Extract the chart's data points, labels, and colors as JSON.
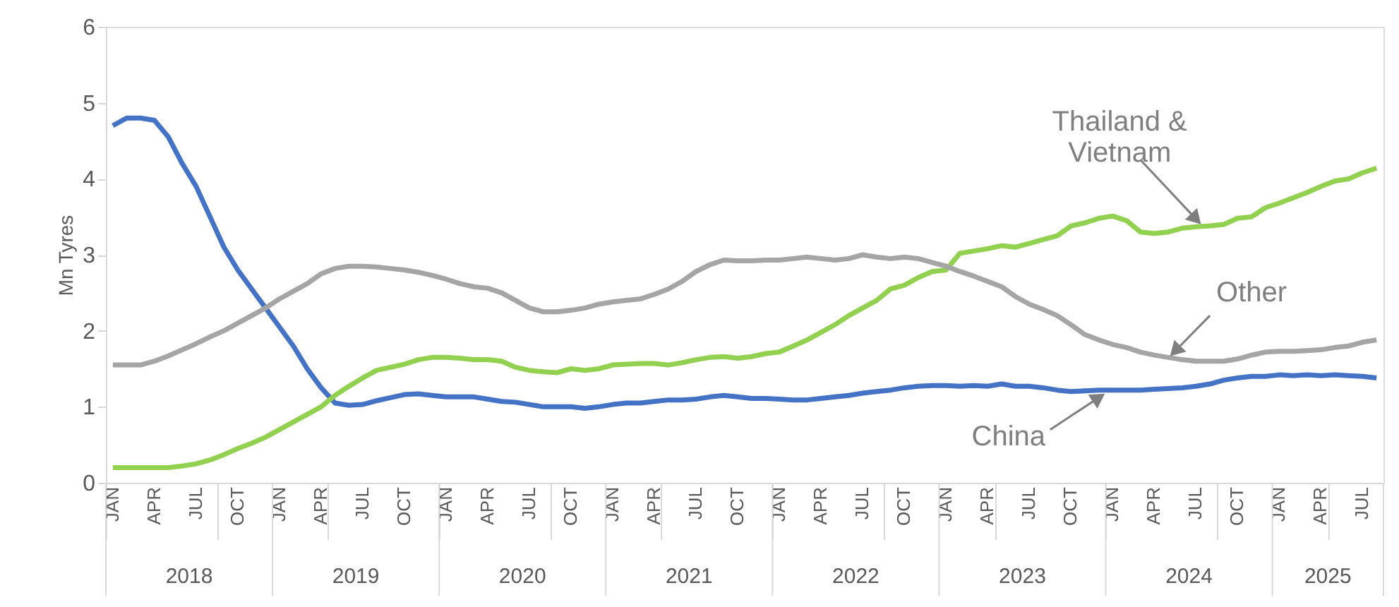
{
  "chart_data": {
    "type": "line",
    "ylabel": "Mn Tyres",
    "categories": [
      "JAN",
      null,
      null,
      "APR",
      null,
      null,
      "JUL",
      null,
      null,
      "OCT",
      null,
      null,
      "JAN",
      null,
      null,
      "APR",
      null,
      null,
      "JUL",
      null,
      null,
      "OCT",
      null,
      null,
      "JAN",
      null,
      null,
      "APR",
      null,
      null,
      "JUL",
      null,
      null,
      "OCT",
      null,
      null,
      "JAN",
      null,
      null,
      "APR",
      null,
      null,
      "JUL",
      null,
      null,
      "OCT",
      null,
      null,
      "JAN",
      null,
      null,
      "APR",
      null,
      null,
      "JUL",
      null,
      null,
      "OCT",
      null,
      null,
      "JAN",
      null,
      null,
      "APR",
      null,
      null,
      "JUL",
      null,
      null,
      "OCT",
      null,
      null,
      "JAN",
      null,
      null,
      "APR",
      null,
      null,
      "JUL",
      null,
      null,
      "OCT",
      null,
      null,
      "JAN",
      null,
      null,
      "APR",
      null,
      null,
      "JUL",
      null
    ],
    "annotations": [
      "2018",
      "2019",
      "2020",
      "2021",
      "2022",
      "2023",
      "2024",
      "2025"
    ],
    "series": [
      {
        "name": "China",
        "color": "#4472c4",
        "values": [
          4.7,
          4.8,
          4.8,
          4.77,
          4.55,
          4.2,
          3.9,
          3.5,
          3.1,
          2.8,
          2.55,
          2.3,
          2.05,
          1.8,
          1.5,
          1.25,
          1.05,
          1.02,
          1.03,
          1.08,
          1.12,
          1.16,
          1.17,
          1.15,
          1.13,
          1.13,
          1.13,
          1.1,
          1.07,
          1.06,
          1.03,
          1.0,
          1.0,
          1.0,
          0.98,
          1.0,
          1.03,
          1.05,
          1.05,
          1.07,
          1.09,
          1.09,
          1.1,
          1.13,
          1.15,
          1.13,
          1.11,
          1.11,
          1.1,
          1.09,
          1.09,
          1.11,
          1.13,
          1.15,
          1.18,
          1.2,
          1.22,
          1.25,
          1.27,
          1.28,
          1.28,
          1.27,
          1.28,
          1.27,
          1.3,
          1.27,
          1.27,
          1.25,
          1.22,
          1.2,
          1.21,
          1.22,
          1.22,
          1.22,
          1.22,
          1.23,
          1.24,
          1.25,
          1.27,
          1.3,
          1.35,
          1.38,
          1.4,
          1.4,
          1.42,
          1.41,
          1.42,
          1.41,
          1.42,
          1.41,
          1.4,
          1.38
        ]
      },
      {
        "name": "Thailand & Vietnam",
        "color": "#92d050",
        "values": [
          0.2,
          0.2,
          0.2,
          0.2,
          0.2,
          0.22,
          0.25,
          0.3,
          0.37,
          0.45,
          0.52,
          0.6,
          0.7,
          0.8,
          0.9,
          1.0,
          1.15,
          1.27,
          1.38,
          1.48,
          1.52,
          1.56,
          1.62,
          1.65,
          1.65,
          1.64,
          1.62,
          1.62,
          1.6,
          1.52,
          1.48,
          1.46,
          1.45,
          1.5,
          1.48,
          1.5,
          1.55,
          1.56,
          1.57,
          1.57,
          1.55,
          1.58,
          1.62,
          1.65,
          1.66,
          1.64,
          1.66,
          1.7,
          1.72,
          1.8,
          1.88,
          1.98,
          2.08,
          2.2,
          2.3,
          2.4,
          2.55,
          2.6,
          2.7,
          2.78,
          2.8,
          3.02,
          3.05,
          3.08,
          3.12,
          3.1,
          3.15,
          3.2,
          3.25,
          3.38,
          3.42,
          3.48,
          3.51,
          3.45,
          3.3,
          3.28,
          3.3,
          3.35,
          3.37,
          3.38,
          3.4,
          3.48,
          3.5,
          3.62,
          3.68,
          3.75,
          3.82,
          3.9,
          3.97,
          4.0,
          4.08,
          4.14
        ]
      },
      {
        "name": "Other",
        "color": "#a5a5a5",
        "values": [
          1.55,
          1.55,
          1.55,
          1.6,
          1.67,
          1.75,
          1.83,
          1.92,
          2.0,
          2.1,
          2.2,
          2.3,
          2.42,
          2.52,
          2.62,
          2.75,
          2.82,
          2.85,
          2.85,
          2.84,
          2.82,
          2.8,
          2.77,
          2.73,
          2.68,
          2.62,
          2.58,
          2.56,
          2.5,
          2.4,
          2.3,
          2.25,
          2.25,
          2.27,
          2.3,
          2.35,
          2.38,
          2.4,
          2.42,
          2.48,
          2.55,
          2.65,
          2.78,
          2.87,
          2.93,
          2.92,
          2.92,
          2.93,
          2.93,
          2.95,
          2.97,
          2.95,
          2.93,
          2.95,
          3.0,
          2.97,
          2.95,
          2.97,
          2.95,
          2.9,
          2.85,
          2.78,
          2.72,
          2.65,
          2.58,
          2.45,
          2.35,
          2.28,
          2.2,
          2.08,
          1.95,
          1.88,
          1.82,
          1.78,
          1.72,
          1.68,
          1.65,
          1.62,
          1.6,
          1.6,
          1.6,
          1.63,
          1.68,
          1.72,
          1.73,
          1.73,
          1.74,
          1.75,
          1.78,
          1.8,
          1.85,
          1.88
        ]
      }
    ],
    "ylim": [
      0,
      6
    ],
    "yticks": [
      0,
      1,
      2,
      3,
      4,
      5,
      6
    ],
    "grid": false
  }
}
